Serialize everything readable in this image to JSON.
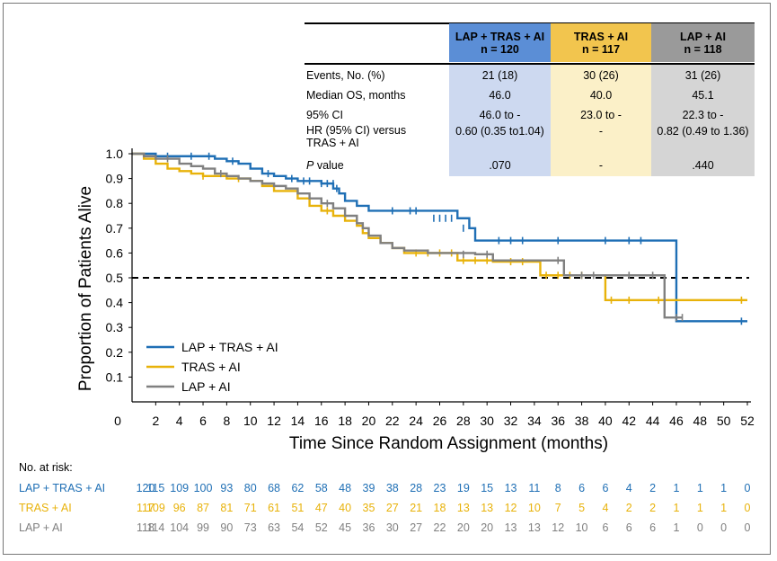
{
  "table": {
    "columns": [
      {
        "title": "LAP + TRAS + AI",
        "n": "n = 120",
        "header_color": "#5b8ed6",
        "body_color": "#cdd9f0"
      },
      {
        "title": "TRAS + AI",
        "n": "n = 117",
        "header_color": "#f2c54e",
        "body_color": "#fbf0c8"
      },
      {
        "title": "LAP + AI",
        "n": "n = 118",
        "header_color": "#9a9a9a",
        "body_color": "#d5d5d5"
      }
    ],
    "rows": [
      {
        "label": "Events, No. (%)",
        "values": [
          "21 (18)",
          "30 (26)",
          "31 (26)"
        ]
      },
      {
        "label": "Median OS, months",
        "values": [
          "46.0",
          "40.0",
          "45.1"
        ]
      },
      {
        "label": "95% CI",
        "values": [
          "46.0 to -",
          "23.0 to -",
          "22.3 to -"
        ]
      },
      {
        "label": "HR (95% CI) versus",
        "label2": "TRAS + AI",
        "values": [
          "0.60 (0.35 to1.04)",
          "-",
          "0.82 (0.49 to 1.36)"
        ]
      },
      {
        "label": "P",
        "label_suffix": " value",
        "values": [
          ".070",
          "-",
          ".440"
        ]
      }
    ]
  },
  "risk": {
    "title": "No. at risk:",
    "rows": [
      {
        "label": "LAP + TRAS + AI",
        "color": "#1f6fb5",
        "values": [
          "120",
          "115",
          "109",
          "100",
          "93",
          "80",
          "68",
          "62",
          "58",
          "48",
          "39",
          "38",
          "28",
          "23",
          "19",
          "15",
          "13",
          "11",
          "8",
          "6",
          "6",
          "4",
          "2",
          "1",
          "1",
          "1",
          "0"
        ]
      },
      {
        "label": "TRAS + AI",
        "color": "#e8b20a",
        "values": [
          "117",
          "109",
          "96",
          "87",
          "81",
          "71",
          "61",
          "51",
          "47",
          "40",
          "35",
          "27",
          "21",
          "18",
          "13",
          "13",
          "12",
          "10",
          "7",
          "5",
          "4",
          "2",
          "2",
          "1",
          "1",
          "1",
          "0"
        ]
      },
      {
        "label": "LAP + AI",
        "color": "#808080",
        "values": [
          "118",
          "114",
          "104",
          "99",
          "90",
          "73",
          "63",
          "54",
          "52",
          "45",
          "36",
          "30",
          "27",
          "22",
          "20",
          "20",
          "13",
          "13",
          "12",
          "10",
          "6",
          "6",
          "6",
          "1",
          "0",
          "0",
          "0"
        ]
      }
    ]
  },
  "chart_data": {
    "type": "line",
    "subtype": "kaplan-meier step curve",
    "xlabel": "Time Since Random Assignment (months)",
    "ylabel": "Proportion of Patients Alive",
    "xlim": [
      0,
      52
    ],
    "ylim": [
      0,
      1.0
    ],
    "x_ticks": [
      0,
      2,
      4,
      6,
      8,
      10,
      12,
      14,
      16,
      18,
      20,
      22,
      24,
      26,
      28,
      30,
      32,
      34,
      36,
      38,
      40,
      42,
      44,
      46,
      48,
      50,
      52
    ],
    "y_ticks": [
      0.1,
      0.2,
      0.3,
      0.4,
      0.5,
      0.6,
      0.7,
      0.8,
      0.9,
      1.0
    ],
    "reference_line": {
      "y": 0.5,
      "style": "dashed"
    },
    "legend_position": "lower-left",
    "series": [
      {
        "name": "LAP + TRAS + AI",
        "color": "#1f6fb5",
        "steps": [
          [
            0,
            1.0
          ],
          [
            2,
            0.99
          ],
          [
            4,
            0.99
          ],
          [
            6,
            0.99
          ],
          [
            7,
            0.98
          ],
          [
            8,
            0.97
          ],
          [
            9,
            0.96
          ],
          [
            10,
            0.94
          ],
          [
            11,
            0.92
          ],
          [
            12,
            0.91
          ],
          [
            13,
            0.9
          ],
          [
            14,
            0.89
          ],
          [
            16,
            0.88
          ],
          [
            17,
            0.86
          ],
          [
            17.5,
            0.84
          ],
          [
            18,
            0.81
          ],
          [
            19,
            0.79
          ],
          [
            20,
            0.77
          ],
          [
            27.5,
            0.74
          ],
          [
            28.5,
            0.7
          ],
          [
            29,
            0.65
          ],
          [
            46,
            0.325
          ],
          [
            52,
            0.325
          ]
        ],
        "censor": [
          [
            3,
            0.99
          ],
          [
            5,
            0.99
          ],
          [
            6.5,
            0.99
          ],
          [
            8.5,
            0.97
          ],
          [
            11.5,
            0.92
          ],
          [
            13.5,
            0.9
          ],
          [
            14.5,
            0.89
          ],
          [
            15,
            0.89
          ],
          [
            16,
            0.88
          ],
          [
            16.5,
            0.88
          ],
          [
            17,
            0.88
          ],
          [
            17.3,
            0.86
          ],
          [
            22,
            0.77
          ],
          [
            23.5,
            0.77
          ],
          [
            24,
            0.77
          ],
          [
            25.5,
            0.74
          ],
          [
            26,
            0.74
          ],
          [
            26.5,
            0.74
          ],
          [
            27,
            0.74
          ],
          [
            28,
            0.7
          ],
          [
            31,
            0.65
          ],
          [
            32,
            0.65
          ],
          [
            33,
            0.65
          ],
          [
            36,
            0.65
          ],
          [
            40,
            0.65
          ],
          [
            42,
            0.65
          ],
          [
            43,
            0.65
          ],
          [
            51.5,
            0.325
          ]
        ]
      },
      {
        "name": "TRAS + AI",
        "color": "#e8b20a",
        "steps": [
          [
            0,
            1.0
          ],
          [
            1,
            0.98
          ],
          [
            2,
            0.96
          ],
          [
            3,
            0.94
          ],
          [
            4,
            0.93
          ],
          [
            5,
            0.92
          ],
          [
            6,
            0.91
          ],
          [
            8,
            0.9
          ],
          [
            10,
            0.89
          ],
          [
            11,
            0.87
          ],
          [
            12,
            0.85
          ],
          [
            14,
            0.82
          ],
          [
            15,
            0.79
          ],
          [
            16,
            0.77
          ],
          [
            17,
            0.75
          ],
          [
            18,
            0.73
          ],
          [
            19,
            0.71
          ],
          [
            19.5,
            0.68
          ],
          [
            20,
            0.66
          ],
          [
            21,
            0.64
          ],
          [
            22,
            0.62
          ],
          [
            23,
            0.6
          ],
          [
            27.5,
            0.57
          ],
          [
            30.5,
            0.565
          ],
          [
            34.5,
            0.51
          ],
          [
            39.5,
            0.51
          ],
          [
            40,
            0.41
          ],
          [
            52,
            0.41
          ]
        ],
        "censor": [
          [
            6,
            0.91
          ],
          [
            9,
            0.9
          ],
          [
            16.5,
            0.77
          ],
          [
            24,
            0.6
          ],
          [
            25,
            0.6
          ],
          [
            26,
            0.6
          ],
          [
            27,
            0.6
          ],
          [
            28,
            0.57
          ],
          [
            29,
            0.57
          ],
          [
            30,
            0.57
          ],
          [
            32,
            0.565
          ],
          [
            33,
            0.565
          ],
          [
            35,
            0.51
          ],
          [
            36,
            0.51
          ],
          [
            37,
            0.51
          ],
          [
            38,
            0.51
          ],
          [
            40.5,
            0.41
          ],
          [
            42,
            0.41
          ],
          [
            44.5,
            0.41
          ],
          [
            51.5,
            0.41
          ]
        ]
      },
      {
        "name": "LAP + AI",
        "color": "#808080",
        "steps": [
          [
            0,
            1.0
          ],
          [
            1,
            0.99
          ],
          [
            2,
            0.98
          ],
          [
            4,
            0.96
          ],
          [
            5,
            0.95
          ],
          [
            6,
            0.94
          ],
          [
            7,
            0.92
          ],
          [
            8,
            0.91
          ],
          [
            9,
            0.9
          ],
          [
            10,
            0.89
          ],
          [
            11,
            0.88
          ],
          [
            12,
            0.87
          ],
          [
            13,
            0.86
          ],
          [
            14,
            0.84
          ],
          [
            15,
            0.82
          ],
          [
            16,
            0.8
          ],
          [
            17,
            0.78
          ],
          [
            18,
            0.75
          ],
          [
            19,
            0.72
          ],
          [
            19.5,
            0.7
          ],
          [
            20,
            0.67
          ],
          [
            21,
            0.64
          ],
          [
            22,
            0.62
          ],
          [
            23,
            0.61
          ],
          [
            25,
            0.6
          ],
          [
            29,
            0.595
          ],
          [
            30.5,
            0.57
          ],
          [
            36.5,
            0.51
          ],
          [
            44.5,
            0.51
          ],
          [
            45,
            0.34
          ],
          [
            46.5,
            0.34
          ]
        ],
        "censor": [
          [
            3,
            0.98
          ],
          [
            7.5,
            0.92
          ],
          [
            16.5,
            0.8
          ],
          [
            28,
            0.595
          ],
          [
            30,
            0.595
          ],
          [
            36,
            0.57
          ],
          [
            38,
            0.51
          ],
          [
            39,
            0.51
          ],
          [
            42,
            0.51
          ],
          [
            44,
            0.51
          ],
          [
            46,
            0.34
          ],
          [
            46.5,
            0.34
          ]
        ]
      }
    ]
  }
}
